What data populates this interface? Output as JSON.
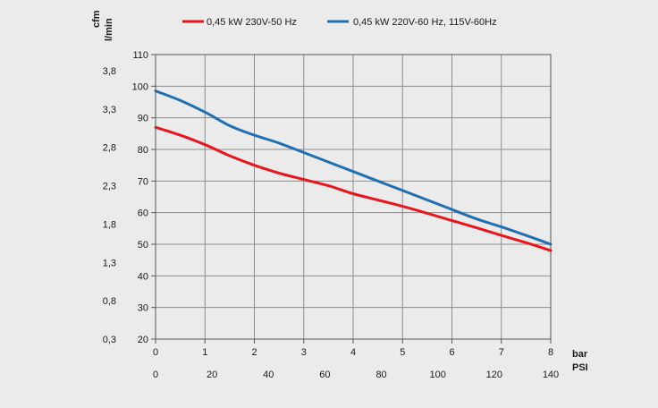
{
  "chart_data": {
    "type": "line",
    "title": "",
    "legend_position": "top",
    "grid": true,
    "x_bar": {
      "label": "bar",
      "range": [
        0,
        8
      ],
      "ticks": [
        "0",
        "1",
        "2",
        "3",
        "4",
        "5",
        "6",
        "7",
        "8"
      ]
    },
    "x_psi": {
      "label": "PSI",
      "range": [
        0,
        140
      ],
      "ticks": [
        "0",
        "20",
        "40",
        "60",
        "80",
        "100",
        "120",
        "140"
      ]
    },
    "y_lmin": {
      "label": "l/min",
      "range": [
        20,
        110
      ],
      "ticks": [
        "20",
        "30",
        "40",
        "50",
        "60",
        "70",
        "80",
        "90",
        "100",
        "110"
      ]
    },
    "y_cfm": {
      "label": "cfm",
      "ticks": [
        "0,3",
        "0,8",
        "1,3",
        "1,8",
        "2,3",
        "2,8",
        "3,3",
        "3,8"
      ]
    },
    "series": [
      {
        "name": "0,45 kW 230V-50 Hz",
        "color": "#e8161c",
        "x": [
          0,
          0.5,
          1,
          1.5,
          2,
          2.5,
          3,
          3.5,
          4,
          4.5,
          5,
          5.5,
          6,
          6.5,
          7,
          7.5,
          8
        ],
        "values": [
          87,
          84.5,
          81.5,
          78,
          75,
          72.5,
          70.5,
          68.5,
          66,
          64,
          62,
          59.8,
          57.5,
          55.2,
          52.8,
          50.5,
          48
        ]
      },
      {
        "name": "0,45 kW 220V-60 Hz, 115V-60Hz",
        "color": "#1f6fb2",
        "x": [
          0,
          0.5,
          1,
          1.5,
          2,
          2.5,
          3,
          3.5,
          4,
          4.5,
          5,
          5.5,
          6,
          6.5,
          7,
          7.5,
          8
        ],
        "values": [
          98.5,
          95.5,
          91.8,
          87.5,
          84.5,
          82,
          79,
          76,
          73,
          70,
          67,
          64,
          61,
          58,
          55.5,
          52.8,
          50
        ]
      }
    ]
  }
}
